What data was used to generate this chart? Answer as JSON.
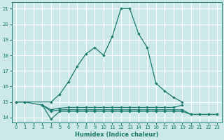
{
  "xlabel": "Humidex (Indice chaleur)",
  "bg_color": "#cce8e8",
  "grid_color": "#ffffff",
  "line_color": "#1a7a6e",
  "xlim": [
    -0.5,
    23.5
  ],
  "ylim": [
    13.7,
    21.4
  ],
  "yticks": [
    14,
    15,
    16,
    17,
    18,
    19,
    20,
    21
  ],
  "xticks": [
    0,
    1,
    2,
    3,
    4,
    5,
    6,
    7,
    8,
    9,
    10,
    11,
    12,
    13,
    14,
    15,
    16,
    17,
    18,
    19,
    20,
    21,
    22,
    23
  ],
  "curves": [
    {
      "x": [
        0,
        1,
        4,
        5,
        6,
        7,
        8,
        9,
        10,
        11,
        12,
        13,
        14,
        15,
        16,
        17,
        18,
        19
      ],
      "y": [
        15.0,
        15.0,
        15.0,
        15.5,
        16.3,
        17.3,
        18.1,
        18.5,
        18.0,
        19.2,
        21.0,
        21.0,
        19.4,
        18.5,
        16.2,
        15.7,
        15.3,
        15.0
      ]
    },
    {
      "x": [
        0,
        1,
        3,
        4,
        5,
        6,
        7,
        8,
        9,
        10,
        11,
        12,
        13,
        14,
        15,
        16,
        17,
        18,
        19
      ],
      "y": [
        15.0,
        15.0,
        14.8,
        14.5,
        14.6,
        14.65,
        14.65,
        14.65,
        14.65,
        14.65,
        14.65,
        14.65,
        14.65,
        14.65,
        14.65,
        14.65,
        14.65,
        14.65,
        14.8
      ]
    },
    {
      "x": [
        3,
        4,
        5,
        6,
        7,
        8,
        9,
        10,
        11,
        12,
        13,
        14,
        15,
        16,
        17,
        18,
        19,
        20,
        21,
        22,
        23
      ],
      "y": [
        14.8,
        13.9,
        14.4,
        14.4,
        14.4,
        14.4,
        14.4,
        14.4,
        14.4,
        14.4,
        14.4,
        14.4,
        14.4,
        14.4,
        14.4,
        14.4,
        14.4,
        14.2,
        14.2,
        14.2,
        14.2
      ]
    },
    {
      "x": [
        3,
        4,
        5,
        6,
        7,
        8,
        9,
        10,
        11,
        12,
        13,
        14,
        15,
        16,
        17,
        18,
        19,
        20,
        21,
        22,
        23
      ],
      "y": [
        14.8,
        14.4,
        14.5,
        14.5,
        14.5,
        14.5,
        14.5,
        14.5,
        14.5,
        14.5,
        14.5,
        14.5,
        14.5,
        14.5,
        14.5,
        14.5,
        14.5,
        14.2,
        14.2,
        14.2,
        14.2
      ]
    }
  ]
}
